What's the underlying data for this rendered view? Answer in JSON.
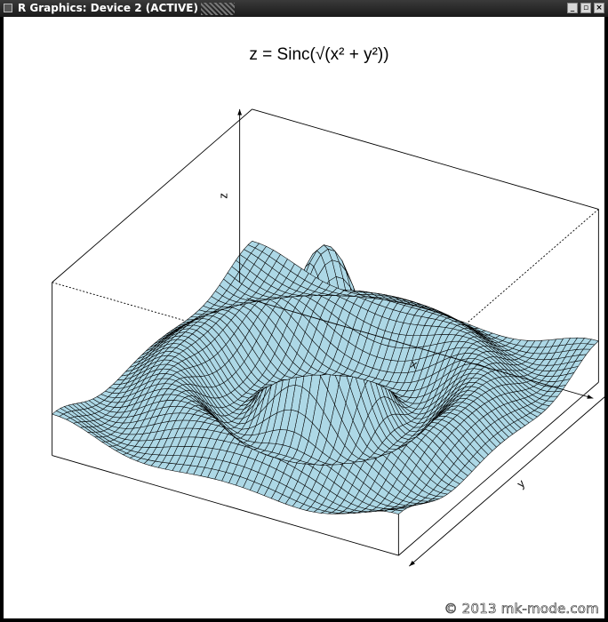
{
  "window": {
    "title": "R Graphics: Device 2 (ACTIVE)",
    "buttons": [
      "minimize",
      "maximize",
      "close"
    ]
  },
  "watermark": "© 2013 mk-mode.com",
  "colors": {
    "surface": "#add8e6",
    "mesh_lines": "#000000",
    "background": "#ffffff",
    "frame": "#000000"
  },
  "chart_data": {
    "type": "surface",
    "function": "z = sin(r)/r, r = sqrt(x^2 + y^2)",
    "title": "z = Sinc(√(x² + y²))",
    "xlabel": "x",
    "ylabel": "y",
    "zlabel": "z",
    "x_range": [
      -10,
      10
    ],
    "y_range": [
      -10,
      10
    ],
    "z_range": [
      -0.22,
      1.0
    ],
    "grid_points": 50,
    "view": {
      "theta": 30,
      "phi": 30,
      "expand": 0.5
    },
    "box": true,
    "axes_ticks": false
  }
}
